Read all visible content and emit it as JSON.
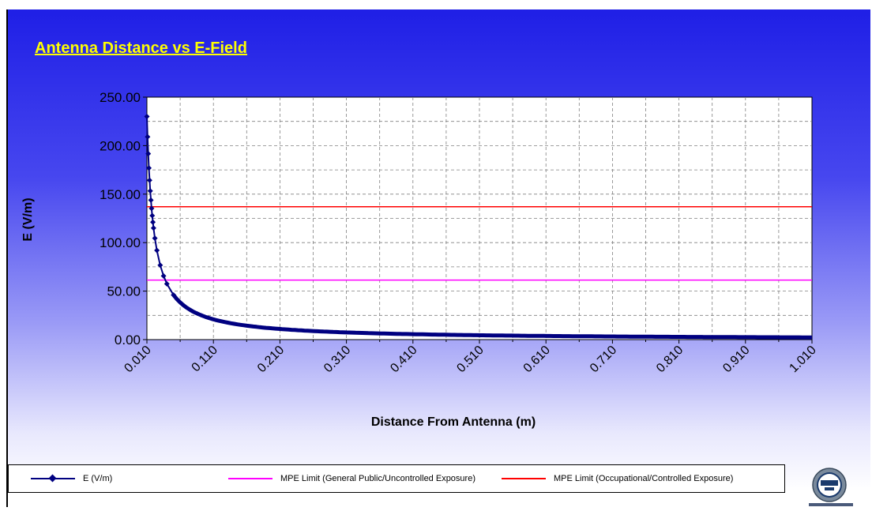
{
  "slide": {
    "title": "Antenna Distance vs E-Field"
  },
  "colors": {
    "background_top": "#1f1fe6",
    "background_bottom": "#ffffff",
    "title": "#ffff00",
    "series_e": "#000080",
    "series_public": "#ff00ff",
    "series_occupational": "#ff0000",
    "grid": "#808080"
  },
  "chart_data": {
    "type": "line",
    "title": "",
    "xlabel": "Distance From Antenna (m)",
    "ylabel": "E (V/m)",
    "xlim": [
      0.01,
      1.01
    ],
    "ylim": [
      0,
      250
    ],
    "y_ticks": [
      "0.00",
      "50.00",
      "100.00",
      "150.00",
      "200.00",
      "250.00"
    ],
    "x_ticks": [
      "0.010",
      "0.110",
      "0.210",
      "0.310",
      "0.410",
      "0.510",
      "0.610",
      "0.710",
      "0.810",
      "0.910",
      "1.010"
    ],
    "grid": true,
    "legend_position": "bottom",
    "series": [
      {
        "name": "E (V/m)",
        "color": "#000080",
        "marker": "diamond",
        "x": [
          0.01,
          0.011,
          0.012,
          0.013,
          0.014,
          0.015,
          0.016,
          0.017,
          0.018,
          0.019,
          0.02,
          0.022,
          0.025,
          0.03,
          0.035,
          0.04,
          0.05,
          0.06,
          0.07,
          0.08,
          0.09,
          0.1,
          0.12,
          0.15,
          0.2,
          0.25,
          0.3,
          0.4,
          0.5,
          0.6,
          0.7,
          0.8,
          0.9,
          1.0,
          1.01
        ],
        "y": [
          230.0,
          209.1,
          191.7,
          176.9,
          164.3,
          153.3,
          143.8,
          135.3,
          127.8,
          121.1,
          115.0,
          104.5,
          92.0,
          76.7,
          65.7,
          57.5,
          46.0,
          38.3,
          32.9,
          28.8,
          25.6,
          23.0,
          19.2,
          15.3,
          11.5,
          9.2,
          7.7,
          5.8,
          4.6,
          3.8,
          3.3,
          2.9,
          2.6,
          2.3,
          2.3
        ]
      },
      {
        "name": "MPE Limit (General Public/Uncontrolled Exposure)",
        "color": "#ff00ff",
        "x": [
          0.01,
          1.01
        ],
        "y": [
          61.4,
          61.4
        ]
      },
      {
        "name": "MPE Limit (Occupational/Controlled Exposure)",
        "color": "#ff0000",
        "x": [
          0.01,
          1.01
        ],
        "y": [
          137.0,
          137.0
        ]
      }
    ]
  }
}
